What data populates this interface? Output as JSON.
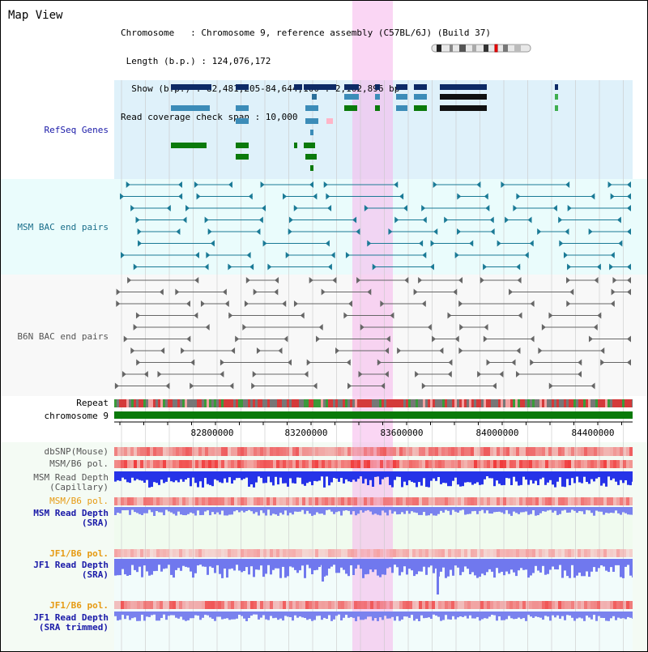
{
  "view": {
    "title": "Map View",
    "info_lines": [
      "Chromosome   : Chromosome 9, reference assembly (C57BL/6J) (Build 37)",
      " Length (b.p.) : 124,076,172",
      "  Show (b.p.) : 82,481,205-84,644,100 : 2,162,896 bp",
      "Read coverage check span : 10,000"
    ]
  },
  "tracks": {
    "refseq": "RefSeq Genes",
    "msm_bac": "MSM BAC end pairs",
    "b6n_bac": "B6N BAC end pairs",
    "repeat": "Repeat",
    "chromosome": "chromosome 9",
    "dbsnp": "dbSNP(Mouse)",
    "msm_b6_pol": "MSM/B6 pol.",
    "msm_depth_cap": "MSM Read Depth\n(Capillary)",
    "msm_b6_pol2": "MSM/B6 pol.",
    "msm_depth_sra": "MSM Read Depth\n(SRA)",
    "jf1_b6_pol": "JF1/B6 pol.",
    "jf1_depth_sra": "JF1 Read Depth\n(SRA)",
    "jf1_b6_pol2": "JF1/B6 pol.",
    "jf1_depth_trim": "JF1 Read Depth\n(SRA trimmed)"
  },
  "axis": {
    "ticks": [
      "82800000",
      "83200000",
      "83600000",
      "84000000",
      "84400000"
    ]
  },
  "colors": {
    "refseq_bg": "#dff1fa",
    "msm_bac_bg": "#e6f9fa",
    "highlight": "#f7d8f2",
    "pol_red": "#f03a3a",
    "depth_blue": "#2f3fe6",
    "label_blue": "#1a1aa8",
    "label_teal": "#1a6e8a",
    "label_gray": "#555555",
    "label_orange": "#e69a12"
  }
}
